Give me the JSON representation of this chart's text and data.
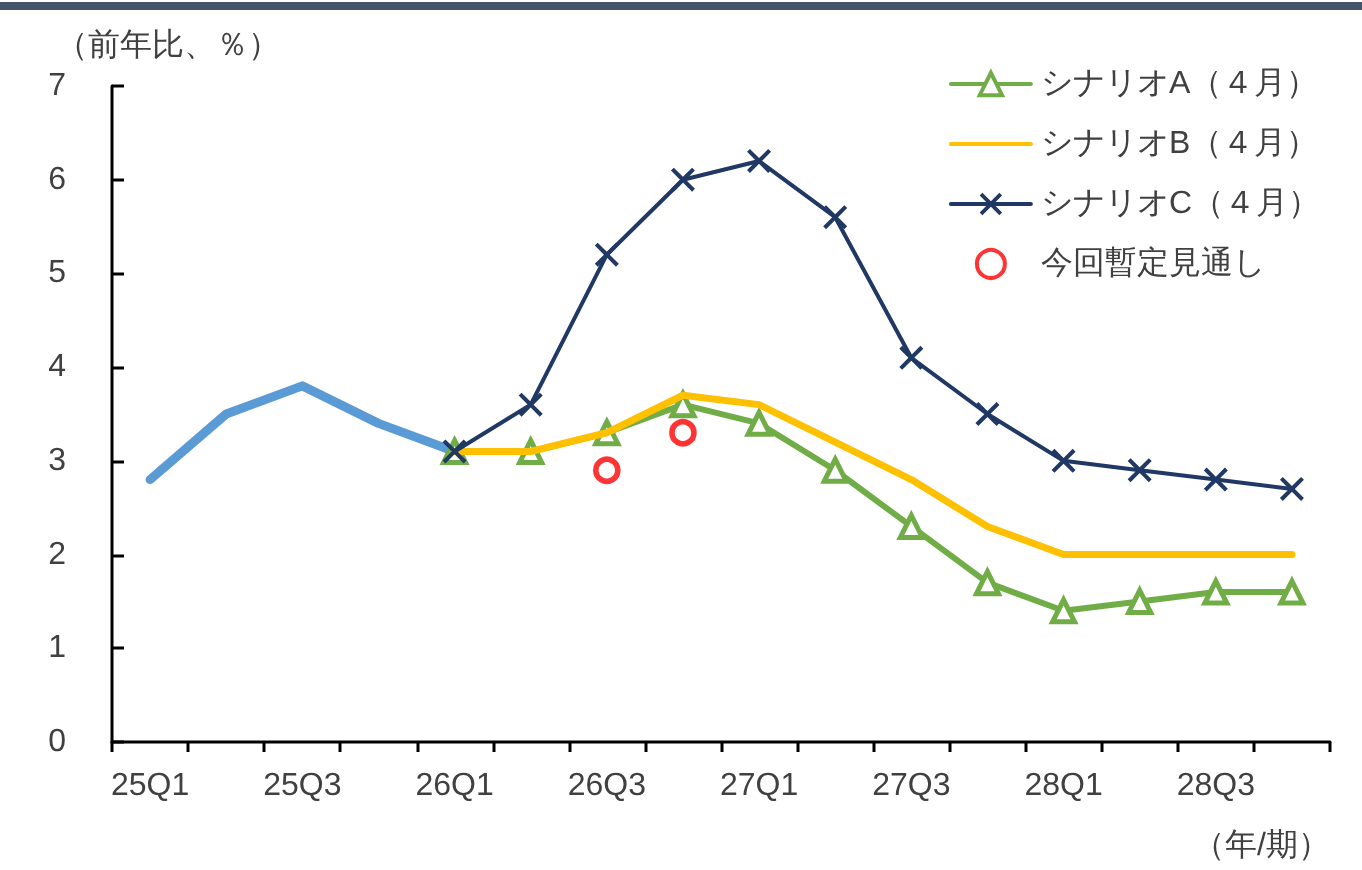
{
  "chart_data": {
    "type": "line",
    "ylabel": "（前年比、％）",
    "xlabel": "（年/期）",
    "categories": [
      "25Q1",
      null,
      "25Q3",
      null,
      "26Q1",
      null,
      "26Q3",
      null,
      "27Q1",
      null,
      "27Q3",
      null,
      "28Q1",
      null,
      "28Q3",
      null
    ],
    "series": [
      {
        "color": "#5b9bd5",
        "values": [
          2.8,
          3.5,
          3.8,
          3.4,
          3.1,
          null,
          null,
          null,
          null,
          null,
          null,
          null,
          null,
          null,
          null,
          null
        ]
      },
      {
        "name": "シナリオA（４月）",
        "color": "#70ad47",
        "marker": "triangle",
        "values": [
          null,
          null,
          null,
          null,
          3.1,
          3.1,
          3.3,
          3.6,
          3.4,
          2.9,
          2.3,
          1.7,
          1.4,
          1.5,
          1.6,
          1.6
        ]
      },
      {
        "name": "シナリオB（４月）",
        "color": "#ffc000",
        "values": [
          null,
          null,
          null,
          null,
          3.1,
          3.1,
          3.3,
          3.7,
          3.6,
          3.2,
          2.8,
          2.3,
          2.0,
          2.0,
          2.0,
          2.0
        ]
      },
      {
        "name": "シナリオC（４月）",
        "color": "#203864",
        "marker": "cross",
        "values": [
          null,
          null,
          null,
          null,
          3.1,
          3.6,
          5.2,
          6.0,
          6.2,
          5.6,
          4.1,
          3.5,
          3.0,
          2.9,
          2.8,
          2.7
        ]
      },
      {
        "name": "今回暫定見通し",
        "type": "scatter",
        "color": "#ff0000",
        "marker": "circle",
        "values": [
          null,
          null,
          null,
          null,
          null,
          null,
          2.9,
          3.3,
          null,
          null,
          null,
          null,
          null,
          null,
          null,
          null
        ]
      }
    ],
    "ylim": [
      0,
      7
    ],
    "yticks": [
      0,
      1,
      2,
      3,
      4,
      5,
      6,
      7
    ],
    "grid": false,
    "legend": "top right",
    "marker": "none",
    "line_style": "solid"
  }
}
